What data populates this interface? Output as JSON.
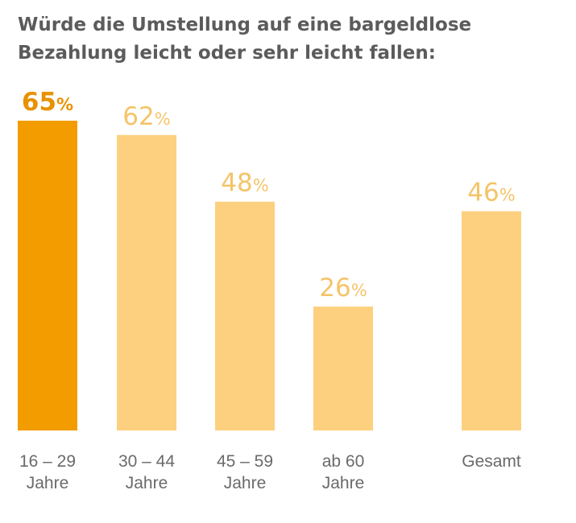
{
  "chart_data": {
    "type": "bar",
    "title_lines": [
      "Würde die Umstellung auf eine bargeldlose",
      "Bezahlung leicht oder sehr leicht fallen:"
    ],
    "categories": [
      [
        "16 – 29",
        "Jahre"
      ],
      [
        "30 – 44",
        "Jahre"
      ],
      [
        "45 – 59",
        "Jahre"
      ],
      [
        "ab 60",
        "Jahre"
      ],
      [
        "Gesamt"
      ]
    ],
    "values": [
      65,
      62,
      48,
      26,
      46
    ],
    "value_labels": [
      "65",
      "62",
      "48",
      "26",
      "46"
    ],
    "value_suffix": "%",
    "highlight_index": 0,
    "ylim": [
      0,
      65
    ],
    "grid": false,
    "colors": {
      "highlight_bar": "#f29c00",
      "highlight_label": "#e89200",
      "bar": "#fdd07f",
      "label": "#f4c46a",
      "title": "#5b5b5b",
      "category": "#6a6a6a"
    }
  }
}
